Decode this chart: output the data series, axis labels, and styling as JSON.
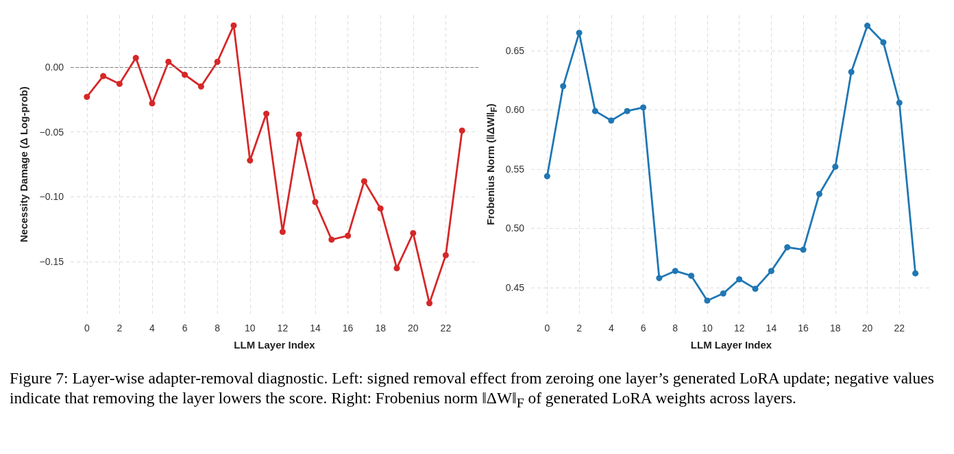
{
  "chart_data": [
    {
      "type": "line",
      "xlabel": "LLM Layer Index",
      "ylabel": "Necessity Damage (Δ Log-prob)",
      "x": [
        0,
        1,
        2,
        3,
        4,
        5,
        6,
        7,
        8,
        9,
        10,
        11,
        12,
        13,
        14,
        15,
        16,
        17,
        18,
        19,
        20,
        21,
        22,
        23
      ],
      "series": [
        {
          "color": "#d62728",
          "values": [
            -0.023,
            -0.007,
            -0.013,
            0.007,
            -0.028,
            0.004,
            -0.006,
            -0.015,
            0.004,
            0.032,
            -0.072,
            -0.036,
            -0.127,
            -0.052,
            -0.104,
            -0.133,
            -0.13,
            -0.088,
            -0.109,
            -0.155,
            -0.128,
            -0.182,
            -0.145,
            -0.049
          ]
        }
      ],
      "xlim": [
        -1,
        24
      ],
      "xticks": [
        0,
        2,
        4,
        6,
        8,
        10,
        12,
        14,
        16,
        18,
        20,
        22
      ],
      "ylim": [
        -0.19,
        0.04
      ],
      "yticks": [
        {
          "value": -0.15,
          "label": "−0.15"
        },
        {
          "value": -0.1,
          "label": "−0.10"
        },
        {
          "value": -0.05,
          "label": "−0.05"
        },
        {
          "value": 0,
          "label": "0.00"
        }
      ],
      "ref_lines": [
        {
          "axis": "y",
          "value": 0,
          "color": "#808080",
          "line_style": "dashed"
        }
      ],
      "grid": true,
      "marker": "circle",
      "line_style": "solid",
      "annotations": [
        "Figure 7: Layer-wise adapter-removal diagnostic. Left: signed removal effect from zeroing one layer’s generated LoRA update; negative values indicate that removing the layer lowers the score. Right: Frobenius norm ‖ΔW‖$_{F}$ of generated LoRA weights across layers."
      ]
    },
    {
      "type": "line",
      "xlabel": "LLM Layer Index",
      "ylabel": "Frobenius Norm (‖ΔW‖$_{F}$)",
      "x": [
        0,
        1,
        2,
        3,
        4,
        5,
        6,
        7,
        8,
        9,
        10,
        11,
        12,
        13,
        14,
        15,
        16,
        17,
        18,
        19,
        20,
        21,
        22,
        23
      ],
      "series": [
        {
          "color": "#1f77b4",
          "values": [
            0.544,
            0.62,
            0.665,
            0.599,
            0.591,
            0.599,
            0.602,
            0.458,
            0.464,
            0.46,
            0.439,
            0.445,
            0.457,
            0.449,
            0.464,
            0.484,
            0.482,
            0.529,
            0.552,
            0.632,
            0.671,
            0.657,
            0.606,
            0.462
          ]
        }
      ],
      "xlim": [
        -1,
        24
      ],
      "xticks": [
        0,
        2,
        4,
        6,
        8,
        10,
        12,
        14,
        16,
        18,
        20,
        22
      ],
      "ylim": [
        0.428,
        0.68
      ],
      "yticks": [
        {
          "value": 0.45,
          "label": "0.45"
        },
        {
          "value": 0.5,
          "label": "0.50"
        },
        {
          "value": 0.55,
          "label": "0.55"
        },
        {
          "value": 0.6,
          "label": "0.60"
        },
        {
          "value": 0.65,
          "label": "0.65"
        }
      ],
      "grid": true,
      "marker": "circle",
      "line_style": "solid"
    }
  ]
}
